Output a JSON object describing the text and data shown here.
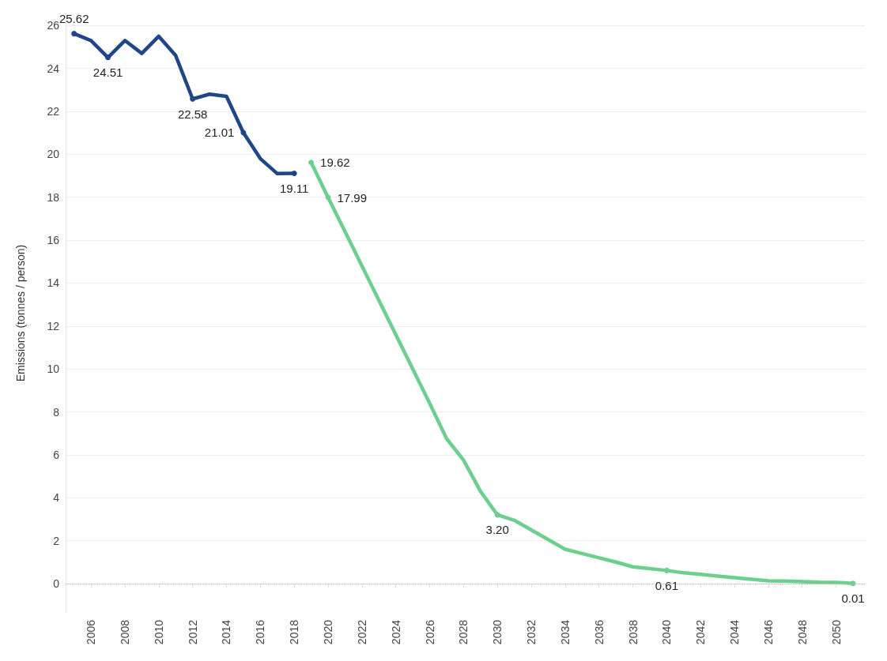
{
  "chart_data": {
    "type": "line",
    "ylabel": "Emissions (tonnes / person)",
    "xlim": [
      2004.5,
      2051.7
    ],
    "xticks": [
      2006,
      2008,
      2010,
      2012,
      2014,
      2016,
      2018,
      2020,
      2022,
      2024,
      2026,
      2028,
      2030,
      2032,
      2034,
      2036,
      2038,
      2040,
      2042,
      2044,
      2046,
      2048,
      2050
    ],
    "ylim": [
      -1.4,
      26.6
    ],
    "yticks": [
      0,
      2,
      4,
      6,
      8,
      10,
      12,
      14,
      16,
      18,
      20,
      22,
      24,
      26
    ],
    "grid": "y",
    "line_style": "solid",
    "ref_lines": [
      {
        "axis": "y",
        "value": 0,
        "color": "#bbbbbb",
        "line_style": "dotted"
      }
    ],
    "series": [
      {
        "color": "#1f4788",
        "x": [
          2005,
          2006,
          2007,
          2008,
          2009,
          2010,
          2011,
          2012,
          2013,
          2014,
          2015,
          2016,
          2017,
          2018
        ],
        "values": [
          25.62,
          25.3,
          24.51,
          25.3,
          24.7,
          25.5,
          24.6,
          22.58,
          22.8,
          22.7,
          21.01,
          19.8,
          19.1,
          19.11
        ],
        "value_labels": [
          "25.62",
          null,
          "24.51",
          null,
          null,
          null,
          null,
          "22.58",
          null,
          null,
          "21.01",
          null,
          null,
          "19.11"
        ]
      },
      {
        "color": "#6dcf8d",
        "x": [
          2019,
          2020,
          2021,
          2022,
          2023,
          2024,
          2025,
          2026,
          2027,
          2028,
          2029,
          2030,
          2031,
          2032,
          2033,
          2034,
          2035,
          2036,
          2037,
          2038,
          2039,
          2040,
          2041,
          2042,
          2043,
          2044,
          2045,
          2046,
          2047,
          2048,
          2049,
          2050,
          2051
        ],
        "values": [
          19.62,
          17.99,
          16.4,
          14.8,
          13.2,
          11.6,
          10.0,
          8.4,
          6.75,
          5.75,
          4.3,
          3.2,
          2.95,
          2.5,
          2.05,
          1.6,
          1.4,
          1.2,
          1.0,
          0.78,
          0.7,
          0.61,
          0.5,
          0.43,
          0.35,
          0.27,
          0.2,
          0.13,
          0.12,
          0.09,
          0.06,
          0.05,
          0.01
        ],
        "value_labels": [
          "19.62",
          "17.99",
          null,
          null,
          null,
          null,
          null,
          null,
          null,
          null,
          null,
          "3.20",
          null,
          null,
          null,
          null,
          null,
          null,
          null,
          null,
          null,
          "0.61",
          null,
          null,
          null,
          null,
          null,
          null,
          null,
          null,
          null,
          null,
          "0.01"
        ]
      }
    ]
  }
}
